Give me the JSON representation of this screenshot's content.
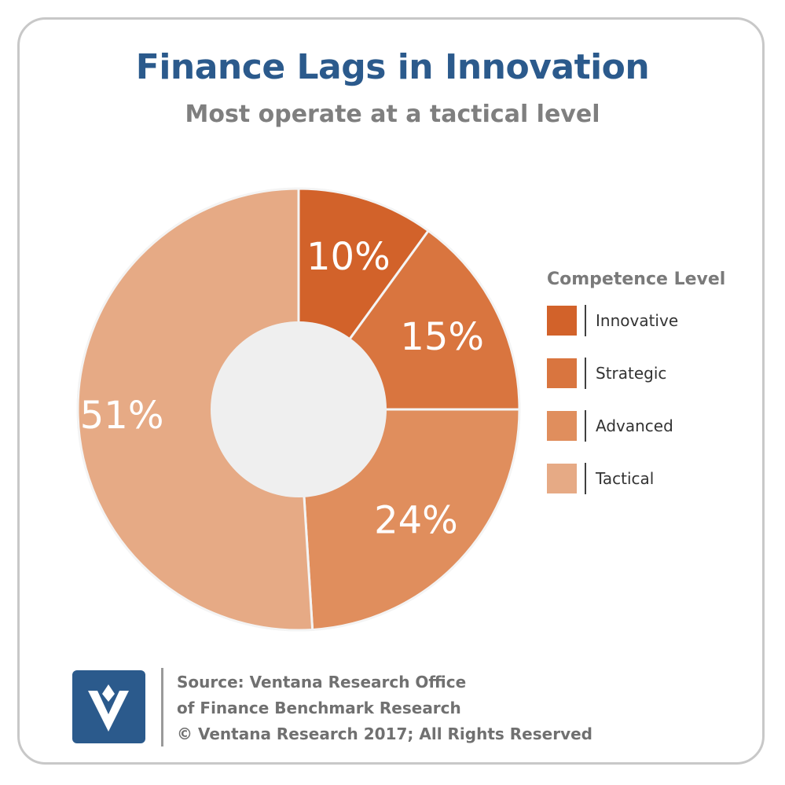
{
  "title": "Finance Lags in Innovation",
  "subtitle": "Most operate at a tactical level",
  "chart_data": {
    "type": "pie",
    "variant": "donut",
    "title": "Finance Lags in Innovation",
    "subtitle": "Most operate at a tactical level",
    "legend_title": "Competence Level",
    "legend_position": "right",
    "categories": [
      "Innovative",
      "Strategic",
      "Advanced",
      "Tactical"
    ],
    "values": [
      10,
      15,
      24,
      51
    ],
    "labels": [
      "10%",
      "15%",
      "24%",
      "51%"
    ],
    "colors": [
      "#d2622a",
      "#d9753f",
      "#e08e5d",
      "#e6aa85"
    ],
    "center_color": "#efefef"
  },
  "footer": {
    "line1": "Source: Ventana Research Office",
    "line2": "of Finance Benchmark Research",
    "line3": "© Ventana Research 2017; All Rights Reserved"
  },
  "logo": {
    "icon": "ventana-v-logo-icon",
    "color": "#2b5a8c"
  }
}
